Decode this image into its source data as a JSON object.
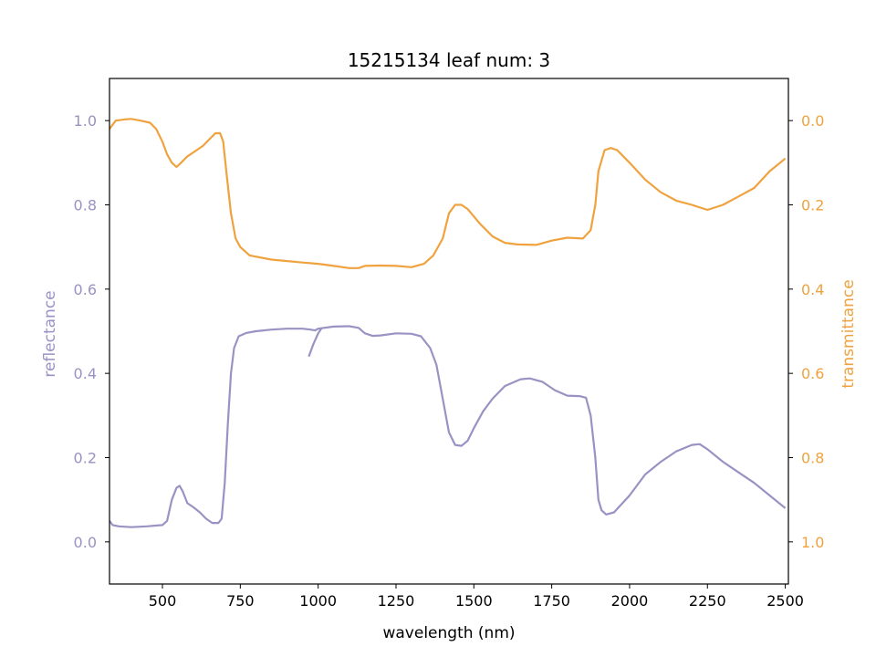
{
  "chart_data": {
    "type": "line",
    "title": "15215134 leaf num: 3",
    "xlabel": "wavelength (nm)",
    "xlim": [
      330,
      2510
    ],
    "xticks": [
      500,
      750,
      1000,
      1250,
      1500,
      1750,
      2000,
      2250,
      2500
    ],
    "y_left": {
      "label": "reflectance",
      "lim": [
        -0.1,
        1.1
      ],
      "ticks": [
        0.0,
        0.2,
        0.4,
        0.6,
        0.8,
        1.0
      ],
      "tick_labels": [
        "0.0",
        "0.2",
        "0.4",
        "0.6",
        "0.8",
        "1.0"
      ],
      "color": "#9893c3"
    },
    "y_right": {
      "label": "transmittance",
      "lim": [
        1.1,
        -0.1
      ],
      "inverted": true,
      "ticks": [
        0.0,
        0.2,
        0.4,
        0.6,
        0.8,
        1.0
      ],
      "tick_labels": [
        "0.0",
        "0.2",
        "0.4",
        "0.6",
        "0.8",
        "1.0"
      ],
      "color": "#efa23e"
    },
    "grid": false,
    "series": [
      {
        "axis": "left",
        "color": "#9893c3",
        "points": [
          [
            330,
            0.05
          ],
          [
            340,
            0.04
          ],
          [
            360,
            0.037
          ],
          [
            400,
            0.035
          ],
          [
            450,
            0.037
          ],
          [
            500,
            0.04
          ],
          [
            515,
            0.05
          ],
          [
            530,
            0.1
          ],
          [
            545,
            0.128
          ],
          [
            555,
            0.133
          ],
          [
            565,
            0.12
          ],
          [
            580,
            0.092
          ],
          [
            600,
            0.082
          ],
          [
            620,
            0.07
          ],
          [
            640,
            0.055
          ],
          [
            660,
            0.045
          ],
          [
            680,
            0.045
          ],
          [
            690,
            0.055
          ],
          [
            700,
            0.14
          ],
          [
            710,
            0.28
          ],
          [
            720,
            0.4
          ],
          [
            730,
            0.46
          ],
          [
            745,
            0.488
          ],
          [
            770,
            0.496
          ],
          [
            800,
            0.5
          ],
          [
            850,
            0.504
          ],
          [
            900,
            0.506
          ],
          [
            950,
            0.506
          ],
          [
            975,
            0.504
          ],
          [
            990,
            0.502
          ],
          [
            1000,
            0.506
          ],
          [
            1050,
            0.511
          ],
          [
            1100,
            0.512
          ],
          [
            1130,
            0.508
          ],
          [
            1150,
            0.495
          ],
          [
            1175,
            0.489
          ],
          [
            1200,
            0.49
          ],
          [
            1250,
            0.495
          ],
          [
            1300,
            0.494
          ],
          [
            1330,
            0.488
          ],
          [
            1360,
            0.46
          ],
          [
            1380,
            0.42
          ],
          [
            1400,
            0.34
          ],
          [
            1420,
            0.26
          ],
          [
            1440,
            0.23
          ],
          [
            1460,
            0.228
          ],
          [
            1480,
            0.24
          ],
          [
            1500,
            0.27
          ],
          [
            1530,
            0.31
          ],
          [
            1560,
            0.34
          ],
          [
            1600,
            0.37
          ],
          [
            1650,
            0.386
          ],
          [
            1680,
            0.388
          ],
          [
            1720,
            0.38
          ],
          [
            1760,
            0.36
          ],
          [
            1800,
            0.347
          ],
          [
            1840,
            0.346
          ],
          [
            1860,
            0.342
          ],
          [
            1875,
            0.3
          ],
          [
            1890,
            0.2
          ],
          [
            1900,
            0.1
          ],
          [
            1910,
            0.075
          ],
          [
            1925,
            0.065
          ],
          [
            1950,
            0.07
          ],
          [
            2000,
            0.11
          ],
          [
            2050,
            0.16
          ],
          [
            2100,
            0.19
          ],
          [
            2150,
            0.215
          ],
          [
            2200,
            0.23
          ],
          [
            2225,
            0.232
          ],
          [
            2250,
            0.22
          ],
          [
            2300,
            0.19
          ],
          [
            2350,
            0.165
          ],
          [
            2400,
            0.14
          ],
          [
            2450,
            0.11
          ],
          [
            2500,
            0.08
          ]
        ]
      },
      {
        "axis": "left",
        "color": "#9893c3",
        "points": [
          [
            970,
            0.44
          ],
          [
            985,
            0.47
          ],
          [
            1000,
            0.495
          ],
          [
            1010,
            0.506
          ]
        ]
      },
      {
        "axis": "right",
        "color": "#efa23e",
        "points": [
          [
            330,
            0.02
          ],
          [
            350,
            0.0
          ],
          [
            380,
            -0.003
          ],
          [
            400,
            -0.004
          ],
          [
            430,
            0.0
          ],
          [
            460,
            0.005
          ],
          [
            480,
            0.02
          ],
          [
            500,
            0.05
          ],
          [
            515,
            0.08
          ],
          [
            530,
            0.1
          ],
          [
            545,
            0.11
          ],
          [
            560,
            0.1
          ],
          [
            580,
            0.085
          ],
          [
            610,
            0.07
          ],
          [
            630,
            0.06
          ],
          [
            650,
            0.045
          ],
          [
            670,
            0.03
          ],
          [
            685,
            0.03
          ],
          [
            695,
            0.05
          ],
          [
            705,
            0.12
          ],
          [
            720,
            0.22
          ],
          [
            735,
            0.28
          ],
          [
            750,
            0.3
          ],
          [
            780,
            0.32
          ],
          [
            850,
            0.33
          ],
          [
            950,
            0.337
          ],
          [
            1000,
            0.34
          ],
          [
            1050,
            0.345
          ],
          [
            1100,
            0.35
          ],
          [
            1130,
            0.35
          ],
          [
            1150,
            0.345
          ],
          [
            1200,
            0.344
          ],
          [
            1250,
            0.345
          ],
          [
            1300,
            0.348
          ],
          [
            1340,
            0.34
          ],
          [
            1370,
            0.32
          ],
          [
            1400,
            0.28
          ],
          [
            1420,
            0.22
          ],
          [
            1440,
            0.2
          ],
          [
            1460,
            0.2
          ],
          [
            1480,
            0.21
          ],
          [
            1520,
            0.245
          ],
          [
            1560,
            0.275
          ],
          [
            1600,
            0.29
          ],
          [
            1640,
            0.294
          ],
          [
            1700,
            0.295
          ],
          [
            1750,
            0.285
          ],
          [
            1800,
            0.278
          ],
          [
            1850,
            0.28
          ],
          [
            1875,
            0.26
          ],
          [
            1890,
            0.2
          ],
          [
            1900,
            0.12
          ],
          [
            1920,
            0.07
          ],
          [
            1940,
            0.065
          ],
          [
            1960,
            0.07
          ],
          [
            2000,
            0.1
          ],
          [
            2050,
            0.14
          ],
          [
            2100,
            0.17
          ],
          [
            2150,
            0.19
          ],
          [
            2200,
            0.2
          ],
          [
            2250,
            0.212
          ],
          [
            2300,
            0.2
          ],
          [
            2350,
            0.18
          ],
          [
            2400,
            0.16
          ],
          [
            2450,
            0.12
          ],
          [
            2500,
            0.09
          ]
        ]
      }
    ]
  }
}
